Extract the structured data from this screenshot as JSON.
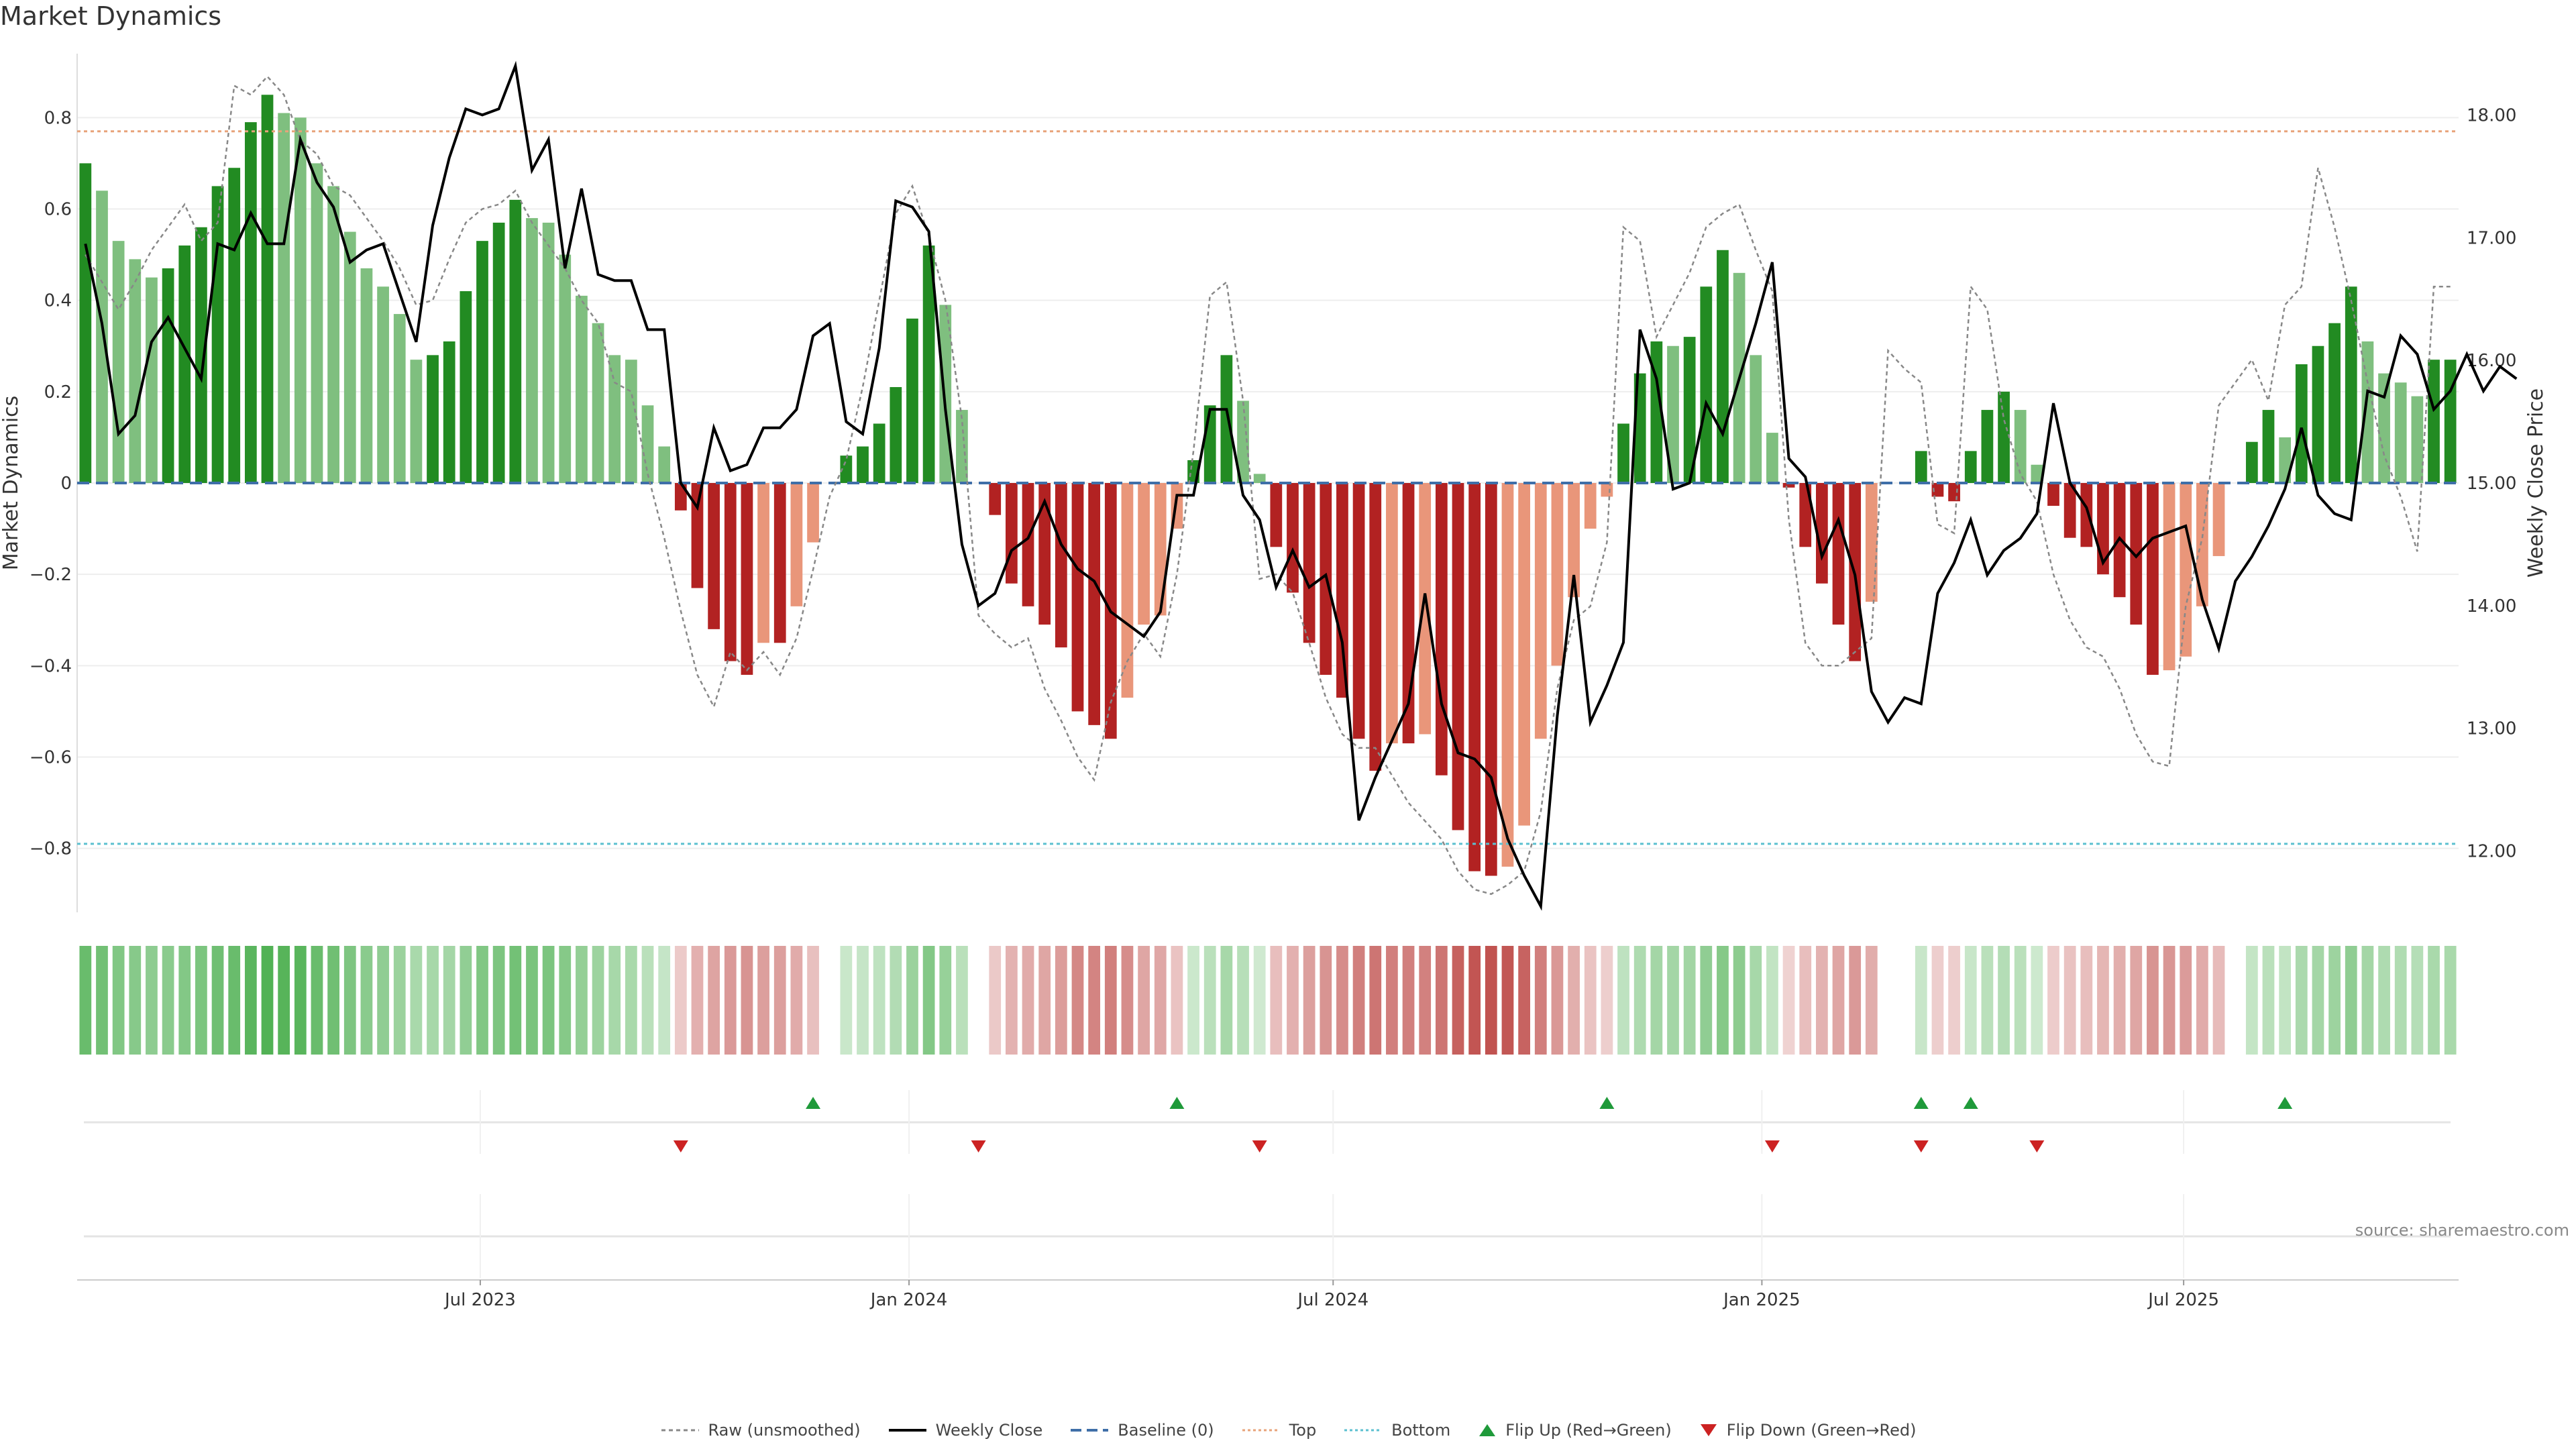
{
  "title": "Market Dynamics",
  "source": "source: sharemaestro.com",
  "chart_data": {
    "type": "bar",
    "ylabel": "Market Dynamics",
    "y2label": "Weekly Close Price",
    "ylim": [
      -0.94,
      0.94
    ],
    "y2lim": [
      11.5,
      18.5
    ],
    "yticks": [
      "0.8",
      "0.6",
      "0.4",
      "0.2",
      "0",
      "−0.2",
      "−0.4",
      "−0.6",
      "−0.8"
    ],
    "yticks_values": [
      0.8,
      0.6,
      0.4,
      0.2,
      0,
      -0.2,
      -0.4,
      -0.6,
      -0.8
    ],
    "y2ticks": [
      "18.00",
      "17.00",
      "16.00",
      "15.00",
      "14.00",
      "13.00",
      "12.00"
    ],
    "y2ticks_values": [
      18,
      17,
      16,
      15,
      14,
      13,
      12
    ],
    "x_start": "2023-01-09",
    "x_end": "2025-10-27",
    "xticks": [
      {
        "label": "Jul 2023",
        "date": "2023-07-01"
      },
      {
        "label": "Jan 2024",
        "date": "2024-01-01"
      },
      {
        "label": "Jul 2024",
        "date": "2024-07-01"
      },
      {
        "label": "Jan 2025",
        "date": "2025-01-01"
      },
      {
        "label": "Jul 2025",
        "date": "2025-07-01"
      }
    ],
    "top_level": 0.77,
    "bottom_level": -0.79,
    "baseline": 0,
    "market_dynamics": [
      0.7,
      0.64,
      0.53,
      0.49,
      0.45,
      0.47,
      0.52,
      0.56,
      0.65,
      0.69,
      0.79,
      0.85,
      0.81,
      0.8,
      0.7,
      0.65,
      0.55,
      0.47,
      0.43,
      0.37,
      0.27,
      0.28,
      0.31,
      0.42,
      0.53,
      0.57,
      0.62,
      0.58,
      0.57,
      0.5,
      0.41,
      0.35,
      0.28,
      0.27,
      0.17,
      0.08,
      -0.06,
      -0.23,
      -0.32,
      -0.39,
      -0.42,
      -0.35,
      -0.35,
      -0.27,
      -0.13,
      0,
      0.06,
      0.08,
      0.13,
      0.21,
      0.36,
      0.52,
      0.39,
      0.16,
      0,
      -0.07,
      -0.22,
      -0.27,
      -0.31,
      -0.36,
      -0.5,
      -0.53,
      -0.56,
      -0.47,
      -0.31,
      -0.29,
      -0.1,
      0.05,
      0.17,
      0.28,
      0.18,
      0.02,
      -0.14,
      -0.24,
      -0.35,
      -0.42,
      -0.47,
      -0.56,
      -0.63,
      -0.57,
      -0.57,
      -0.55,
      -0.64,
      -0.76,
      -0.85,
      -0.86,
      -0.84,
      -0.75,
      -0.56,
      -0.4,
      -0.25,
      -0.1,
      -0.03,
      0.13,
      0.24,
      0.31,
      0.3,
      0.32,
      0.43,
      0.51,
      0.46,
      0.28,
      0.11,
      -0.01,
      -0.14,
      -0.22,
      -0.31,
      -0.39,
      -0.26,
      0,
      0,
      0.07,
      -0.03,
      -0.04,
      0.07,
      0.16,
      0.2,
      0.16,
      0.04,
      -0.05,
      -0.12,
      -0.14,
      -0.2,
      -0.25,
      -0.31,
      -0.42,
      -0.41,
      -0.38,
      -0.27,
      -0.16,
      0,
      0.09,
      0.16,
      0.1,
      0.26,
      0.3,
      0.35,
      0.43,
      0.31,
      0.24,
      0.22,
      0.19,
      0.27,
      0.27
    ],
    "raw_unsmoothed": [
      0.5,
      0.44,
      0.38,
      0.44,
      0.51,
      0.56,
      0.61,
      0.53,
      0.57,
      0.87,
      0.85,
      0.89,
      0.85,
      0.75,
      0.72,
      0.65,
      0.63,
      0.58,
      0.53,
      0.47,
      0.39,
      0.4,
      0.49,
      0.57,
      0.6,
      0.61,
      0.64,
      0.57,
      0.52,
      0.47,
      0.4,
      0.35,
      0.22,
      0.2,
      0.02,
      -0.12,
      -0.28,
      -0.42,
      -0.49,
      -0.37,
      -0.41,
      -0.37,
      -0.42,
      -0.34,
      -0.19,
      -0.03,
      0.05,
      0.21,
      0.4,
      0.59,
      0.65,
      0.54,
      0.4,
      0.14,
      -0.29,
      -0.33,
      -0.36,
      -0.34,
      -0.45,
      -0.52,
      -0.6,
      -0.65,
      -0.48,
      -0.39,
      -0.33,
      -0.38,
      -0.2,
      0.07,
      0.41,
      0.44,
      0.18,
      -0.21,
      -0.2,
      -0.24,
      -0.35,
      -0.47,
      -0.55,
      -0.58,
      -0.58,
      -0.64,
      -0.7,
      -0.74,
      -0.78,
      -0.85,
      -0.89,
      -0.9,
      -0.88,
      -0.85,
      -0.72,
      -0.45,
      -0.3,
      -0.27,
      -0.13,
      0.56,
      0.53,
      0.32,
      0.39,
      0.46,
      0.56,
      0.59,
      0.61,
      0.51,
      0.42,
      -0.08,
      -0.35,
      -0.4,
      -0.4,
      -0.37,
      -0.34,
      0.29,
      0.25,
      0.22,
      -0.09,
      -0.11,
      0.43,
      0.38,
      0.14,
      0.02,
      -0.04,
      -0.2,
      -0.3,
      -0.36,
      -0.38,
      -0.45,
      -0.55,
      -0.61,
      -0.62,
      -0.27,
      -0.12,
      0.17,
      0.22,
      0.27,
      0.18,
      0.39,
      0.43,
      0.69,
      0.56,
      0.4,
      0.22,
      0.06,
      -0.03,
      -0.15,
      0.43,
      0.43
    ],
    "weekly_close": [
      16.95,
      16.3,
      15.4,
      15.55,
      16.15,
      16.35,
      16.1,
      15.85,
      16.95,
      16.9,
      17.2,
      16.95,
      16.95,
      17.8,
      17.45,
      17.25,
      16.8,
      16.9,
      16.95,
      16.55,
      16.15,
      17.1,
      17.65,
      18.05,
      18.0,
      18.05,
      18.4,
      17.55,
      17.8,
      16.75,
      17.4,
      16.7,
      16.65,
      16.65,
      16.25,
      16.25,
      15.0,
      14.8,
      15.45,
      15.1,
      15.15,
      15.45,
      15.45,
      15.6,
      16.2,
      16.3,
      15.5,
      15.4,
      16.1,
      17.3,
      17.25,
      17.05,
      15.6,
      14.5,
      14.0,
      14.1,
      14.45,
      14.55,
      14.85,
      14.5,
      14.3,
      14.2,
      13.95,
      13.85,
      13.75,
      13.95,
      14.9,
      14.9,
      15.6,
      15.6,
      14.9,
      14.7,
      14.15,
      14.45,
      14.15,
      14.25,
      13.7,
      12.25,
      12.6,
      12.9,
      13.2,
      14.1,
      13.2,
      12.8,
      12.75,
      12.6,
      12.1,
      11.8,
      11.55,
      13.1,
      14.25,
      13.05,
      13.35,
      13.7,
      16.25,
      15.85,
      14.95,
      15.0,
      15.65,
      15.4,
      15.85,
      16.3,
      16.8,
      15.2,
      15.05,
      14.4,
      14.7,
      14.25,
      13.3,
      13.05,
      13.25,
      13.2,
      14.1,
      14.35,
      14.7,
      14.25,
      14.45,
      14.55,
      14.75,
      15.65,
      15.0,
      14.8,
      14.35,
      14.55,
      14.4,
      14.55,
      14.6,
      14.65,
      14.05,
      13.65,
      14.2,
      14.4,
      14.65,
      14.95,
      15.45,
      14.9,
      14.75,
      14.7,
      15.75,
      15.7,
      16.2,
      16.05,
      15.6,
      15.75,
      16.05,
      15.75,
      15.95,
      15.85
    ]
  },
  "flips": {
    "up_indices": [
      44,
      66,
      92,
      111,
      114,
      133
    ],
    "down_indices": [
      36,
      54,
      71,
      102,
      111,
      118
    ]
  },
  "legend": {
    "raw": "Raw (unsmoothed)",
    "close": "Weekly Close",
    "baseline": "Baseline (0)",
    "top": "Top",
    "bottom": "Bottom",
    "flip_up": "Flip Up (Red→Green)",
    "flip_down": "Flip Down (Green→Red)"
  },
  "colors": {
    "strong_green": "#228b22",
    "light_green": "#7fbf7f",
    "strong_red": "#b22222",
    "light_red": "#e9967a",
    "close_line": "#000000",
    "raw_line": "#888888",
    "baseline": "#3f6fa8",
    "top": "#e8a37a",
    "bottom": "#5cc0d0",
    "flip_up": "#1f9a3a",
    "flip_down": "#cc2222",
    "strip_green": "#4caf50",
    "strip_red": "#c0504d"
  }
}
